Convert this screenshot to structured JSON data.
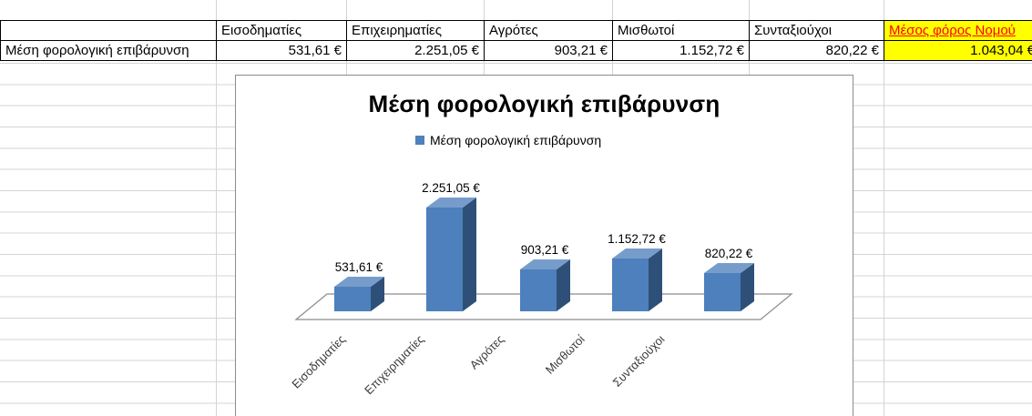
{
  "sheet": {
    "gridline_color": "#D4D4D4"
  },
  "table": {
    "row_label": "Μέση φορολογική επιβάρυνση",
    "headers": [
      "Εισοδηματίες",
      "Επιχειρηματίες",
      "Αγρότες",
      "Μισθωτοί",
      "Συνταξιούχοι",
      "Μέσος φόρος Νομού"
    ],
    "values": [
      "531,61 €",
      "2.251,05 €",
      "903,21 €",
      "1.152,72 €",
      "820,22 €",
      "1.043,04 €"
    ],
    "highlight": {
      "bg": "#FFFF00",
      "header_text_color": "#FF0000"
    }
  },
  "chart_data": {
    "type": "bar",
    "style": "3d-column",
    "title": "Μέση φορολογική επιβάρυνση",
    "series_name": "Μέση φορολογική επιβάρυνση",
    "categories": [
      "Εισοδηματίες",
      "Επιχειρηματίες",
      "Αγρότες",
      "Μισθωτοί",
      "Συνταξιούχοι"
    ],
    "values": [
      531.61,
      2251.05,
      903.21,
      1152.72,
      820.22
    ],
    "value_labels": [
      "531,61 €",
      "2.251,05 €",
      "903,21 €",
      "1.152,72 €",
      "820,22 €"
    ],
    "xlabel": "",
    "ylabel": "",
    "ylim": [
      0,
      2500
    ],
    "grid": false,
    "legend_position": "top",
    "colors": {
      "bar_front": "#4D80BC",
      "bar_side": "#2E5078",
      "bar_top": "#769CCB",
      "legend_swatch": "#4F81BD",
      "floor_stroke": "#8C8C8C"
    }
  }
}
